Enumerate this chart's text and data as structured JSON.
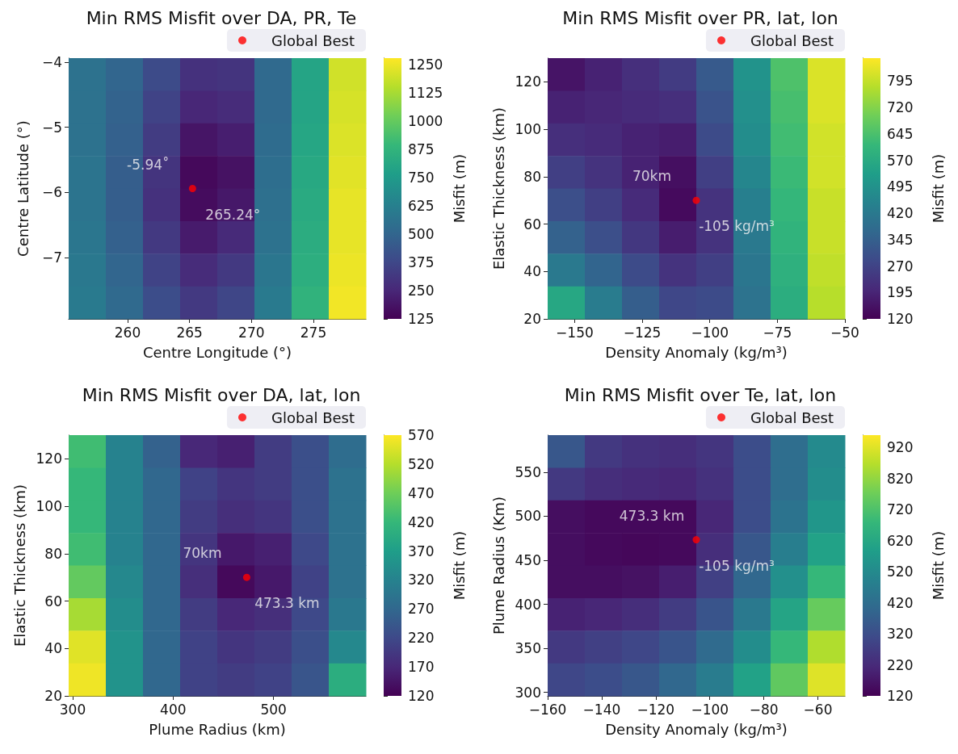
{
  "chart_data": [
    {
      "type": "heatmap",
      "title": "Min RMS Misfit over DA, PR, Te",
      "xlabel": "Centre Longitude (°)",
      "ylabel": "Centre Latitude (°)",
      "clabel": "Misfit (m)",
      "cells": [
        [
          560,
          500,
          390,
          290,
          300,
          520,
          800,
          1200
        ],
        [
          560,
          490,
          360,
          250,
          270,
          520,
          800,
          1210
        ],
        [
          560,
          480,
          330,
          190,
          220,
          530,
          810,
          1220
        ],
        [
          570,
          470,
          300,
          150,
          180,
          540,
          820,
          1230
        ],
        [
          570,
          470,
          290,
          160,
          200,
          550,
          830,
          1240
        ],
        [
          580,
          480,
          320,
          210,
          260,
          560,
          840,
          1240
        ],
        [
          590,
          500,
          360,
          270,
          320,
          580,
          850,
          1250
        ],
        [
          600,
          520,
          400,
          320,
          370,
          600,
          870,
          1260
        ]
      ],
      "xlim": [
        255.24,
        279.24
      ],
      "xticks": [
        260,
        265,
        270,
        275
      ],
      "ylim": [
        -7.94,
        -3.94
      ],
      "yticks": [
        {
          "value": -7,
          "label": "−7"
        },
        {
          "value": -6,
          "label": "−6"
        },
        {
          "value": -5,
          "label": "−5"
        },
        {
          "value": -4,
          "label": "−4"
        }
      ],
      "clim": [
        125,
        1280
      ],
      "cticks": [
        125,
        250,
        375,
        500,
        625,
        750,
        875,
        1000,
        1125,
        1250
      ],
      "series": [
        {
          "type": "scatter",
          "name": "Global Best",
          "color": "#ff0000",
          "x": [
            265.24
          ],
          "values": [
            -5.94
          ]
        }
      ],
      "marker": "circle",
      "legend": "top right",
      "annotations": [
        "-5.94˚",
        "265.24°"
      ]
    },
    {
      "type": "heatmap",
      "title": "Min RMS Misfit over PR, lat, lon",
      "xlabel": "Density Anomaly (kg/m³)",
      "ylabel": "Elastic Thickness (km)",
      "clabel": "Misfit (m)",
      "cells": [
        [
          160,
          190,
          220,
          250,
          330,
          500,
          650,
          820
        ],
        [
          190,
          200,
          210,
          220,
          310,
          490,
          640,
          820
        ],
        [
          220,
          210,
          190,
          180,
          290,
          480,
          630,
          810
        ],
        [
          260,
          230,
          190,
          150,
          260,
          460,
          620,
          810
        ],
        [
          300,
          260,
          210,
          140,
          230,
          440,
          610,
          800
        ],
        [
          350,
          300,
          240,
          180,
          230,
          420,
          600,
          800
        ],
        [
          420,
          360,
          290,
          230,
          260,
          410,
          590,
          790
        ],
        [
          560,
          430,
          340,
          280,
          290,
          400,
          580,
          780
        ]
      ],
      "xlim": [
        -160,
        -50
      ],
      "xticks": [
        {
          "value": -150,
          "label": "−150"
        },
        {
          "value": -125,
          "label": "−125"
        },
        {
          "value": -100,
          "label": "−100"
        },
        {
          "value": -75,
          "label": "−75"
        },
        {
          "value": -50,
          "label": "−50"
        }
      ],
      "ylim": [
        20,
        130
      ],
      "yticks": [
        20,
        40,
        60,
        80,
        100,
        120
      ],
      "clim": [
        120,
        860
      ],
      "cticks": [
        120,
        195,
        270,
        345,
        420,
        495,
        570,
        645,
        720,
        795
      ],
      "series": [
        {
          "type": "scatter",
          "name": "Global Best",
          "color": "#ff0000",
          "x": [
            -105
          ],
          "values": [
            70
          ]
        }
      ],
      "marker": "circle",
      "legend": "top right",
      "annotations": [
        "70km",
        "-105 kg/m³"
      ]
    },
    {
      "type": "heatmap",
      "title": "Min RMS Misfit over DA, lat, lon",
      "xlabel": "Plume Radius (km)",
      "ylabel": "Elastic Thickness (km)",
      "clabel": "Misfit (m)",
      "cells": [
        [
          430,
          320,
          260,
          170,
          160,
          200,
          230,
          280
        ],
        [
          420,
          320,
          270,
          210,
          190,
          200,
          230,
          290
        ],
        [
          420,
          320,
          270,
          200,
          180,
          190,
          230,
          290
        ],
        [
          430,
          320,
          270,
          190,
          150,
          160,
          220,
          290
        ],
        [
          460,
          330,
          270,
          180,
          130,
          150,
          210,
          290
        ],
        [
          510,
          340,
          270,
          200,
          170,
          180,
          220,
          300
        ],
        [
          550,
          350,
          270,
          210,
          190,
          200,
          230,
          330
        ],
        [
          560,
          350,
          270,
          210,
          200,
          210,
          240,
          400
        ]
      ],
      "xlim": [
        296,
        592
      ],
      "xticks": [
        300,
        400,
        500
      ],
      "ylim": [
        20,
        130
      ],
      "yticks": [
        20,
        40,
        60,
        80,
        100,
        120
      ],
      "clim": [
        120,
        570
      ],
      "cticks": [
        120,
        170,
        220,
        270,
        320,
        370,
        420,
        470,
        520,
        570
      ],
      "series": [
        {
          "type": "scatter",
          "name": "Global Best",
          "color": "#ff0000",
          "x": [
            473.3
          ],
          "values": [
            70
          ]
        }
      ],
      "marker": "circle",
      "legend": "top right",
      "annotations": [
        "70km",
        "473.3 km"
      ]
    },
    {
      "type": "heatmap",
      "title": "Min RMS Misfit over Te, lat, lon",
      "xlabel": "Density Anomaly (kg/m³)",
      "ylabel": "Plume Radius (Km)",
      "clabel": "Misfit (m)",
      "cells": [
        [
          350,
          260,
          240,
          230,
          250,
          320,
          420,
          520
        ],
        [
          260,
          230,
          220,
          210,
          240,
          320,
          420,
          530
        ],
        [
          150,
          140,
          140,
          140,
          210,
          320,
          440,
          560
        ],
        [
          150,
          140,
          135,
          140,
          230,
          350,
          480,
          600
        ],
        [
          150,
          150,
          160,
          190,
          280,
          400,
          540,
          680
        ],
        [
          200,
          210,
          230,
          270,
          340,
          460,
          610,
          760
        ],
        [
          260,
          280,
          300,
          340,
          410,
          530,
          680,
          860
        ],
        [
          300,
          320,
          350,
          400,
          470,
          600,
          750,
          920
        ]
      ],
      "xlim": [
        -160,
        -50
      ],
      "xticks": [
        {
          "value": -160,
          "label": "−160"
        },
        {
          "value": -140,
          "label": "−140"
        },
        {
          "value": -120,
          "label": "−120"
        },
        {
          "value": -100,
          "label": "−100"
        },
        {
          "value": -80,
          "label": "−80"
        },
        {
          "value": -60,
          "label": "−60"
        }
      ],
      "ylim": [
        296,
        592
      ],
      "yticks": [
        300,
        350,
        400,
        450,
        500,
        550
      ],
      "clim": [
        120,
        960
      ],
      "cticks": [
        120,
        220,
        320,
        420,
        520,
        620,
        720,
        820,
        920
      ],
      "series": [
        {
          "type": "scatter",
          "name": "Global Best",
          "color": "#ff0000",
          "x": [
            -105
          ],
          "values": [
            473.3
          ]
        }
      ],
      "marker": "circle",
      "legend": "top right",
      "annotations": [
        "473.3 km",
        "-105 kg/m³"
      ]
    }
  ]
}
